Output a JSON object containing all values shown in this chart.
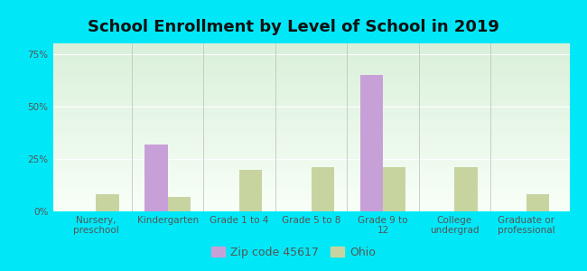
{
  "title": "School Enrollment by Level of School in 2019",
  "categories": [
    "Nursery,\npreschool",
    "Kindergarten",
    "Grade 1 to 4",
    "Grade 5 to 8",
    "Grade 9 to\n12",
    "College\nundergrad",
    "Graduate or\nprofessional"
  ],
  "zip_values": [
    0.0,
    32.0,
    0.0,
    0.0,
    65.0,
    0.0,
    0.0
  ],
  "ohio_values": [
    8.0,
    7.0,
    20.0,
    21.0,
    21.0,
    21.0,
    8.0
  ],
  "zip_color": "#c8a0d8",
  "ohio_color": "#c8d4a0",
  "background_color": "#00e8f8",
  "plot_bg_color_top": "#daf0da",
  "plot_bg_color_bottom": "#f8fff8",
  "ylim": [
    0,
    80
  ],
  "yticks": [
    0,
    25,
    50,
    75
  ],
  "ytick_labels": [
    "0%",
    "25%",
    "50%",
    "75%"
  ],
  "zip_label": "Zip code 45617",
  "ohio_label": "Ohio",
  "bar_width": 0.32,
  "title_fontsize": 13,
  "tick_fontsize": 7.5,
  "legend_fontsize": 9
}
